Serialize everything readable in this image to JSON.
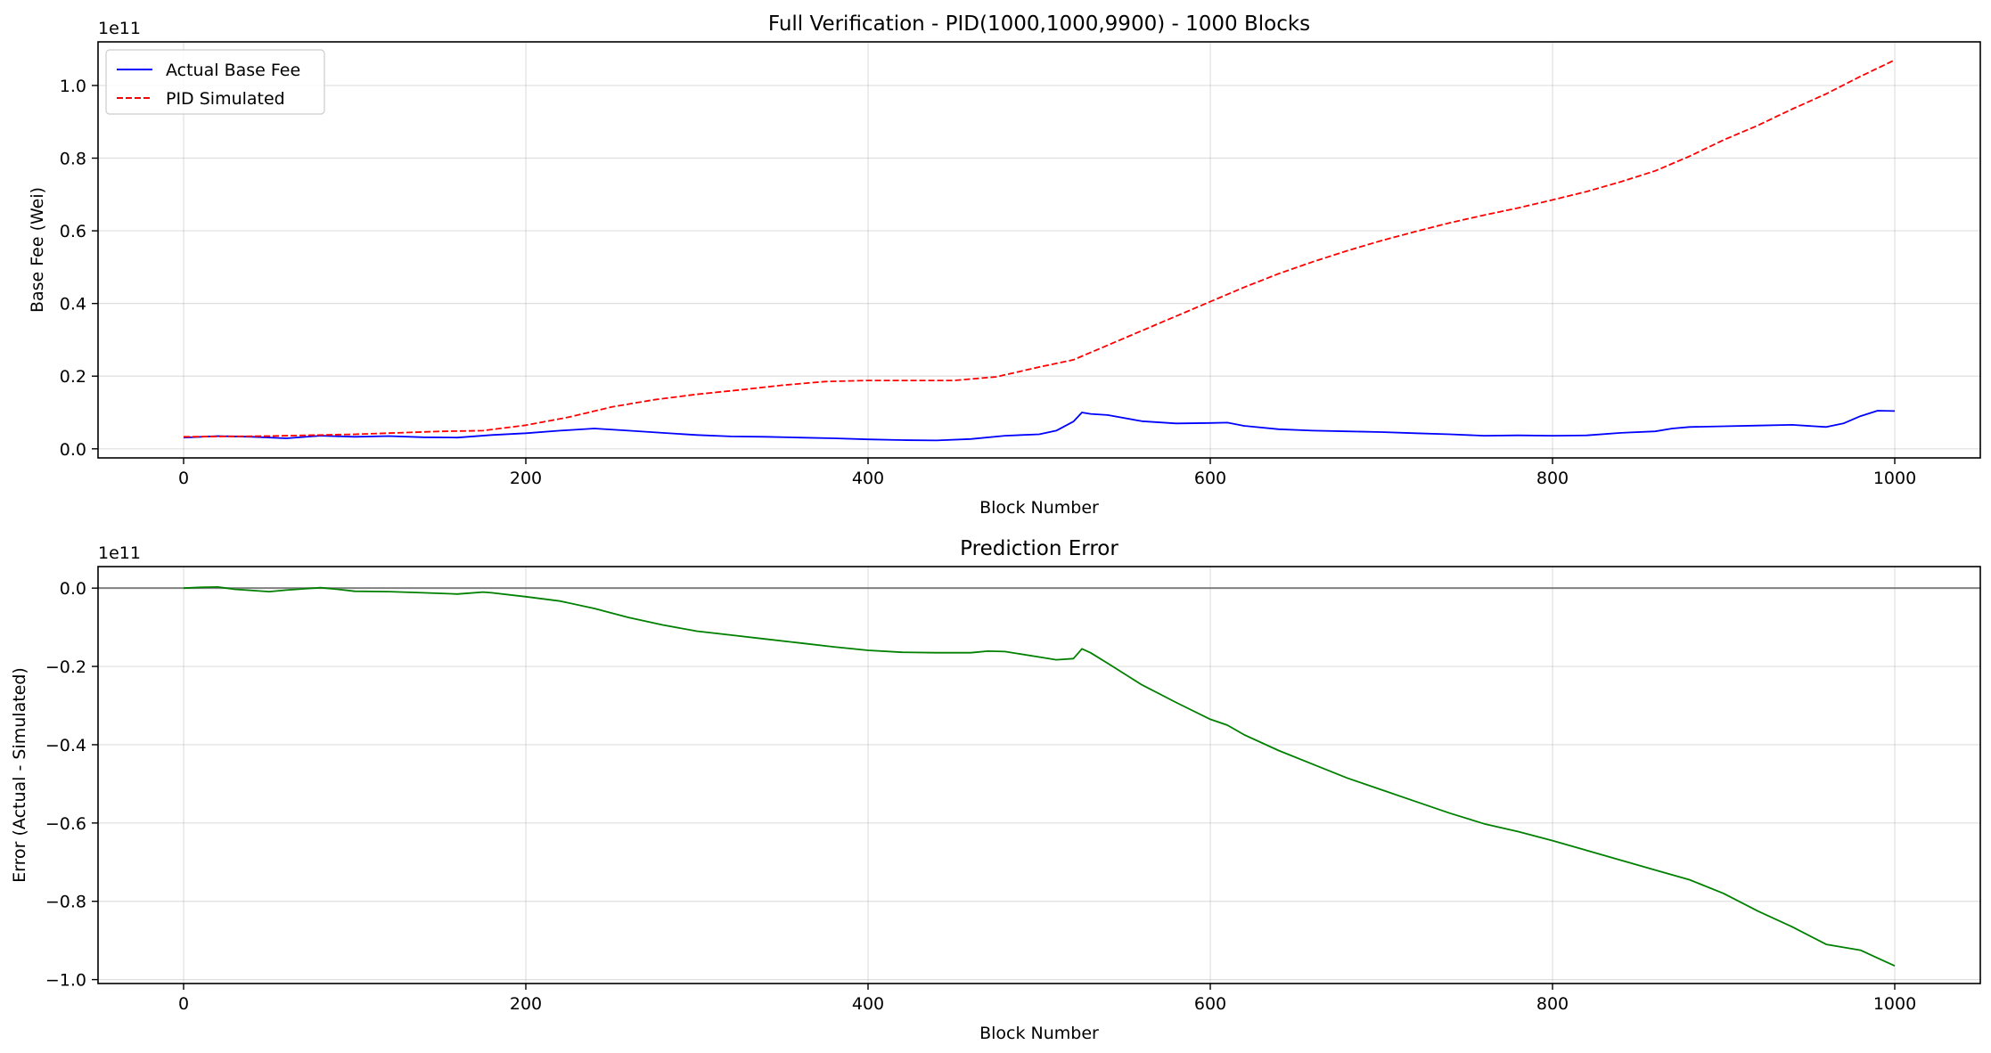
{
  "chart_data": [
    {
      "type": "line",
      "title": "Full Verification - PID(1000,1000,9900) - 1000 Blocks",
      "xlabel": "Block Number",
      "ylabel": "Base Fee (Wei)",
      "y_offset_text": "1e11",
      "xlim": [
        -50,
        1050
      ],
      "ylim": [
        -2500000000.0,
        112000000000.0
      ],
      "xticks": [
        0,
        200,
        400,
        600,
        800,
        1000
      ],
      "xtick_labels": [
        "0",
        "200",
        "400",
        "600",
        "800",
        "1000"
      ],
      "yticks": [
        0,
        20000000000.0,
        40000000000.0,
        60000000000.0,
        80000000000.0,
        100000000000.0
      ],
      "ytick_labels": [
        "0.0",
        "0.2",
        "0.4",
        "0.6",
        "0.8",
        "1.0"
      ],
      "grid": true,
      "legend_position": "upper-left",
      "series": [
        {
          "name": "Actual Base Fee",
          "color": "#0000ff",
          "style": "solid",
          "x": [
            0,
            20,
            40,
            60,
            80,
            100,
            120,
            140,
            160,
            180,
            200,
            220,
            240,
            260,
            280,
            300,
            320,
            340,
            360,
            380,
            400,
            420,
            440,
            460,
            480,
            500,
            510,
            520,
            525,
            530,
            540,
            560,
            580,
            600,
            610,
            620,
            640,
            660,
            680,
            700,
            720,
            740,
            760,
            780,
            800,
            820,
            840,
            860,
            870,
            880,
            900,
            920,
            940,
            960,
            970,
            980,
            990,
            1000
          ],
          "y": [
            3100000000.0,
            3500000000.0,
            3300000000.0,
            2900000000.0,
            3600000000.0,
            3300000000.0,
            3500000000.0,
            3200000000.0,
            3100000000.0,
            3800000000.0,
            4300000000.0,
            5000000000.0,
            5600000000.0,
            5000000000.0,
            4400000000.0,
            3800000000.0,
            3400000000.0,
            3300000000.0,
            3100000000.0,
            2900000000.0,
            2600000000.0,
            2400000000.0,
            2300000000.0,
            2700000000.0,
            3600000000.0,
            4000000000.0,
            5000000000.0,
            7500000000.0,
            10000000000.0,
            9600000000.0,
            9300000000.0,
            7600000000.0,
            7000000000.0,
            7100000000.0,
            7200000000.0,
            6300000000.0,
            5400000000.0,
            5000000000.0,
            4800000000.0,
            4600000000.0,
            4300000000.0,
            4000000000.0,
            3600000000.0,
            3700000000.0,
            3600000000.0,
            3700000000.0,
            4400000000.0,
            4800000000.0,
            5600000000.0,
            6000000000.0,
            6200000000.0,
            6400000000.0,
            6600000000.0,
            6000000000.0,
            7000000000.0,
            9000000000.0,
            10500000000.0,
            10400000000.0
          ]
        },
        {
          "name": "PID Simulated",
          "color": "#ff0000",
          "style": "dashed",
          "x": [
            0,
            50,
            100,
            150,
            175,
            200,
            225,
            250,
            275,
            300,
            325,
            350,
            375,
            400,
            425,
            450,
            475,
            500,
            520,
            540,
            560,
            580,
            600,
            620,
            640,
            660,
            680,
            700,
            720,
            740,
            760,
            780,
            800,
            820,
            840,
            860,
            880,
            900,
            920,
            940,
            960,
            980,
            1000
          ],
          "y": [
            3300000000.0,
            3500000000.0,
            4000000000.0,
            4800000000.0,
            5000000000.0,
            6500000000.0,
            8700000000.0,
            11500000000.0,
            13500000000.0,
            15000000000.0,
            16200000000.0,
            17500000000.0,
            18500000000.0,
            18800000000.0,
            18800000000.0,
            18800000000.0,
            19800000000.0,
            22500000000.0,
            24500000000.0,
            28500000000.0,
            32500000000.0,
            36500000000.0,
            40500000000.0,
            44500000000.0,
            48200000000.0,
            51500000000.0,
            54500000000.0,
            57300000000.0,
            59800000000.0,
            62200000000.0,
            64300000000.0,
            66300000000.0,
            68500000000.0,
            70800000000.0,
            73500000000.0,
            76500000000.0,
            80500000000.0,
            85000000000.0,
            89000000000.0,
            93500000000.0,
            97700000000.0,
            102500000000.0,
            107000000000.0
          ]
        }
      ]
    },
    {
      "type": "line",
      "title": "Prediction Error",
      "xlabel": "Block Number",
      "ylabel": "Error (Actual - Simulated)",
      "y_offset_text": "1e11",
      "xlim": [
        -50,
        1050
      ],
      "ylim": [
        -101000000000.0,
        5500000000.0
      ],
      "xticks": [
        0,
        200,
        400,
        600,
        800,
        1000
      ],
      "xtick_labels": [
        "0",
        "200",
        "400",
        "600",
        "800",
        "1000"
      ],
      "yticks": [
        0,
        -20000000000.0,
        -40000000000.0,
        -60000000000.0,
        -80000000000.0,
        -100000000000.0
      ],
      "ytick_labels": [
        "0.0",
        "−0.2",
        "−0.4",
        "−0.6",
        "−0.8",
        "−1.0"
      ],
      "grid": true,
      "reference_line_y": 0,
      "reference_line_color": "#808080",
      "series": [
        {
          "color": "#008000",
          "style": "solid",
          "x": [
            0,
            10,
            20,
            30,
            50,
            60,
            70,
            80,
            90,
            100,
            120,
            140,
            160,
            175,
            180,
            200,
            220,
            240,
            260,
            280,
            300,
            320,
            340,
            360,
            380,
            400,
            420,
            440,
            460,
            470,
            480,
            500,
            510,
            520,
            525,
            530,
            540,
            560,
            580,
            600,
            610,
            620,
            640,
            660,
            680,
            700,
            720,
            740,
            760,
            780,
            800,
            820,
            840,
            860,
            880,
            900,
            920,
            940,
            960,
            980,
            990,
            1000
          ],
          "y": [
            0,
            200000000.0,
            300000000.0,
            -300000000.0,
            -900000000.0,
            -500000000.0,
            -200000000.0,
            100000000.0,
            -300000000.0,
            -800000000.0,
            -900000000.0,
            -1200000000.0,
            -1500000000.0,
            -1000000000.0,
            -1200000000.0,
            -2200000000.0,
            -3300000000.0,
            -5200000000.0,
            -7500000000.0,
            -9400000000.0,
            -11000000000.0,
            -12000000000.0,
            -13000000000.0,
            -14000000000.0,
            -15000000000.0,
            -15900000000.0,
            -16400000000.0,
            -16500000000.0,
            -16500000000.0,
            -16100000000.0,
            -16200000000.0,
            -17600000000.0,
            -18300000000.0,
            -18000000000.0,
            -15500000000.0,
            -16500000000.0,
            -19200000000.0,
            -24700000000.0,
            -29200000000.0,
            -33500000000.0,
            -35000000000.0,
            -37500000000.0,
            -41500000000.0,
            -45000000000.0,
            -48500000000.0,
            -51500000000.0,
            -54500000000.0,
            -57500000000.0,
            -60200000000.0,
            -62200000000.0,
            -64500000000.0,
            -67000000000.0,
            -69500000000.0,
            -72000000000.0,
            -74500000000.0,
            -78000000000.0,
            -82500000000.0,
            -86500000000.0,
            -91000000000.0,
            -92500000000.0,
            -94500000000.0,
            -96500000000.0
          ]
        }
      ]
    }
  ]
}
